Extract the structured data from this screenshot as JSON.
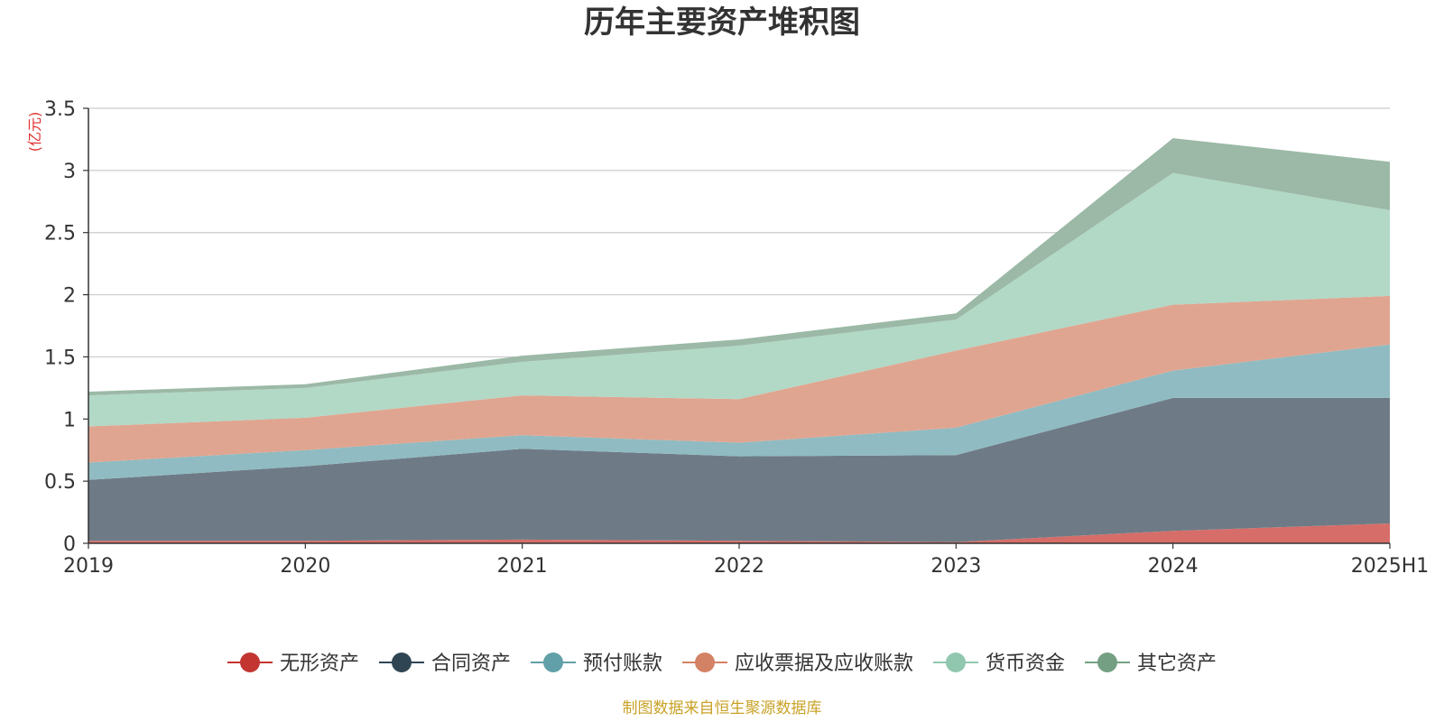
{
  "chart_data": {
    "type": "area",
    "stacked": true,
    "title": "历年主要资产堆积图",
    "ylabel": "(亿元)",
    "xlabel": "",
    "ylim": [
      0,
      3.5
    ],
    "y_ticks": [
      0,
      0.5,
      1,
      1.5,
      2,
      2.5,
      3,
      3.5
    ],
    "y_tick_labels": [
      "0",
      "0.5",
      "1",
      "1.5",
      "2",
      "2.5",
      "3",
      "3.5"
    ],
    "categories": [
      "2019",
      "2020",
      "2021",
      "2022",
      "2023",
      "2024",
      "2025H1"
    ],
    "grid": true,
    "legend_position": "bottom",
    "series": [
      {
        "name": "无形资产",
        "values": [
          0.02,
          0.02,
          0.03,
          0.02,
          0.01,
          0.1,
          0.16
        ],
        "color": "#c23531",
        "fill": "#d66d69"
      },
      {
        "name": "合同资产",
        "values": [
          0.49,
          0.6,
          0.73,
          0.68,
          0.7,
          1.07,
          1.01
        ],
        "color": "#2f4554",
        "fill": "#6e7b86"
      },
      {
        "name": "预付账款",
        "values": [
          0.14,
          0.13,
          0.11,
          0.11,
          0.22,
          0.22,
          0.43
        ],
        "color": "#61a0a8",
        "fill": "#90bbc2"
      },
      {
        "name": "应收票据及应收账款",
        "values": [
          0.29,
          0.26,
          0.32,
          0.35,
          0.62,
          0.53,
          0.39
        ],
        "color": "#d48265",
        "fill": "#e0a590"
      },
      {
        "name": "货币资金",
        "values": [
          0.25,
          0.24,
          0.27,
          0.43,
          0.25,
          1.06,
          0.69
        ],
        "color": "#91c7ae",
        "fill": "#b2d8c6"
      },
      {
        "name": "其它资产",
        "values": [
          0.03,
          0.03,
          0.05,
          0.05,
          0.05,
          0.28,
          0.39
        ],
        "color": "#749f83",
        "fill": "#9bb9a6"
      }
    ],
    "source_note": "制图数据来自恒生聚源数据库"
  }
}
